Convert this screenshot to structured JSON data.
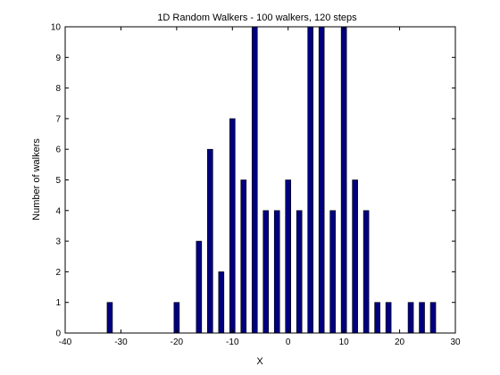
{
  "chart_data": {
    "type": "bar",
    "title": "1D Random Walkers - 100 walkers, 120 steps",
    "xlabel": "X",
    "ylabel": "Number of walkers",
    "xlim": [
      -40,
      30
    ],
    "ylim": [
      0,
      10
    ],
    "xticks": [
      -40,
      -30,
      -20,
      -10,
      0,
      10,
      20,
      30
    ],
    "yticks": [
      0,
      1,
      2,
      3,
      4,
      5,
      6,
      7,
      8,
      9,
      10
    ],
    "grid": false,
    "bar_color": "#00007f",
    "bar_edge_color": "#000000",
    "x": [
      -32,
      -20,
      -16,
      -14,
      -12,
      -10,
      -8,
      -6,
      -4,
      -2,
      0,
      2,
      4,
      6,
      8,
      10,
      12,
      14,
      16,
      18,
      20,
      22,
      24,
      26
    ],
    "values": [
      1,
      1,
      3,
      6,
      2,
      7,
      5,
      10,
      4,
      4,
      5,
      4,
      10,
      10,
      4,
      10,
      5,
      4,
      1,
      1,
      0,
      1,
      1,
      1
    ]
  }
}
